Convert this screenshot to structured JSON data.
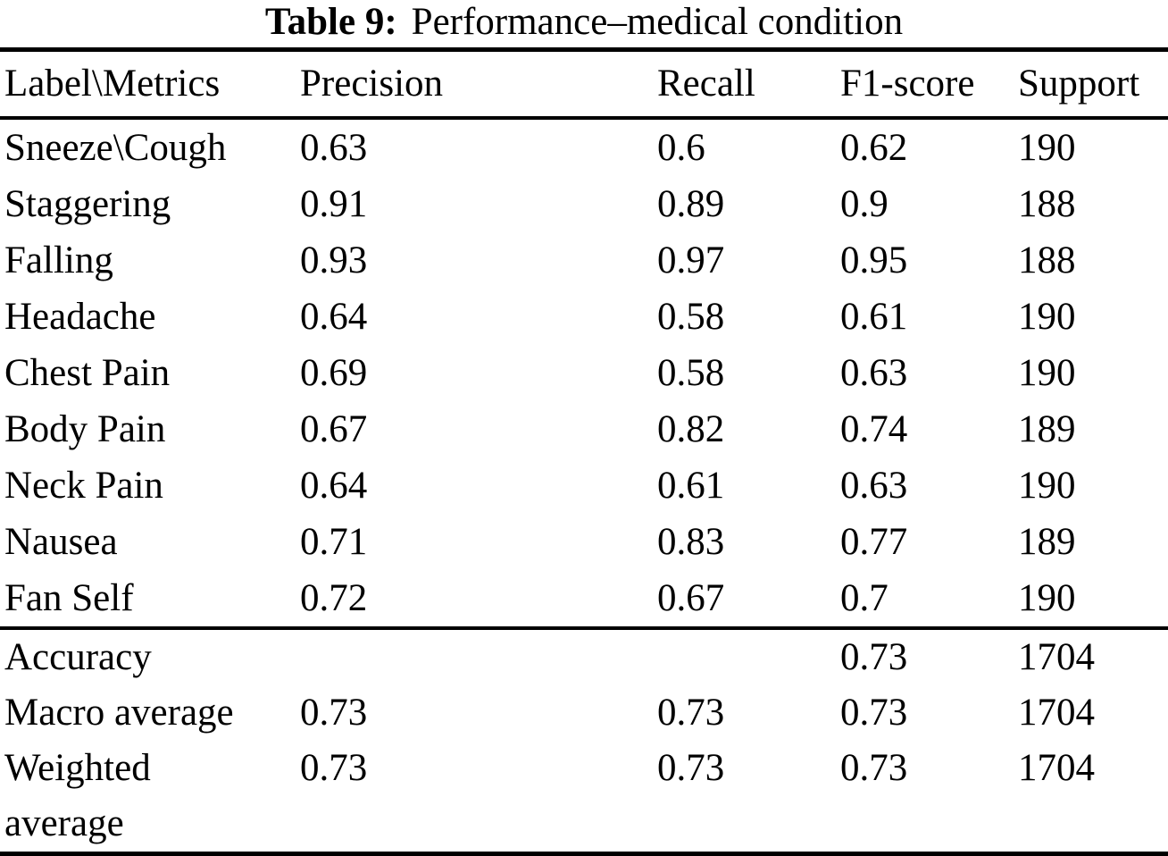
{
  "table": {
    "title_label": "Table 9:",
    "title_text": "Performance–medical condition",
    "columns": [
      "Label\\Metrics",
      "Precision",
      "Recall",
      "F1-score",
      "Support"
    ],
    "rows": [
      {
        "label": "Sneeze\\Cough",
        "precision": "0.63",
        "recall": "0.6",
        "f1": "0.62",
        "support": "190"
      },
      {
        "label": "Staggering",
        "precision": "0.91",
        "recall": "0.89",
        "f1": "0.9",
        "support": "188"
      },
      {
        "label": "Falling",
        "precision": "0.93",
        "recall": "0.97",
        "f1": "0.95",
        "support": "188"
      },
      {
        "label": "Headache",
        "precision": "0.64",
        "recall": "0.58",
        "f1": "0.61",
        "support": "190"
      },
      {
        "label": "Chest Pain",
        "precision": "0.69",
        "recall": "0.58",
        "f1": "0.63",
        "support": "190"
      },
      {
        "label": "Body Pain",
        "precision": "0.67",
        "recall": "0.82",
        "f1": "0.74",
        "support": "189"
      },
      {
        "label": "Neck Pain",
        "precision": "0.64",
        "recall": "0.61",
        "f1": "0.63",
        "support": "190"
      },
      {
        "label": "Nausea",
        "precision": "0.71",
        "recall": "0.83",
        "f1": "0.77",
        "support": "189"
      },
      {
        "label": "Fan Self",
        "precision": "0.72",
        "recall": "0.67",
        "f1": "0.7",
        "support": "190"
      }
    ],
    "summary_rows": [
      {
        "label": "Accuracy",
        "precision": "",
        "recall": "",
        "f1": "0.73",
        "support": "1704"
      },
      {
        "label": "Macro average",
        "precision": "0.73",
        "recall": "0.73",
        "f1": "0.73",
        "support": "1704"
      },
      {
        "label": "Weighted average",
        "precision": "0.73",
        "recall": "0.73",
        "f1": "0.73",
        "support": "1704"
      }
    ],
    "text_color": "#000000",
    "background_color": "#ffffff"
  }
}
